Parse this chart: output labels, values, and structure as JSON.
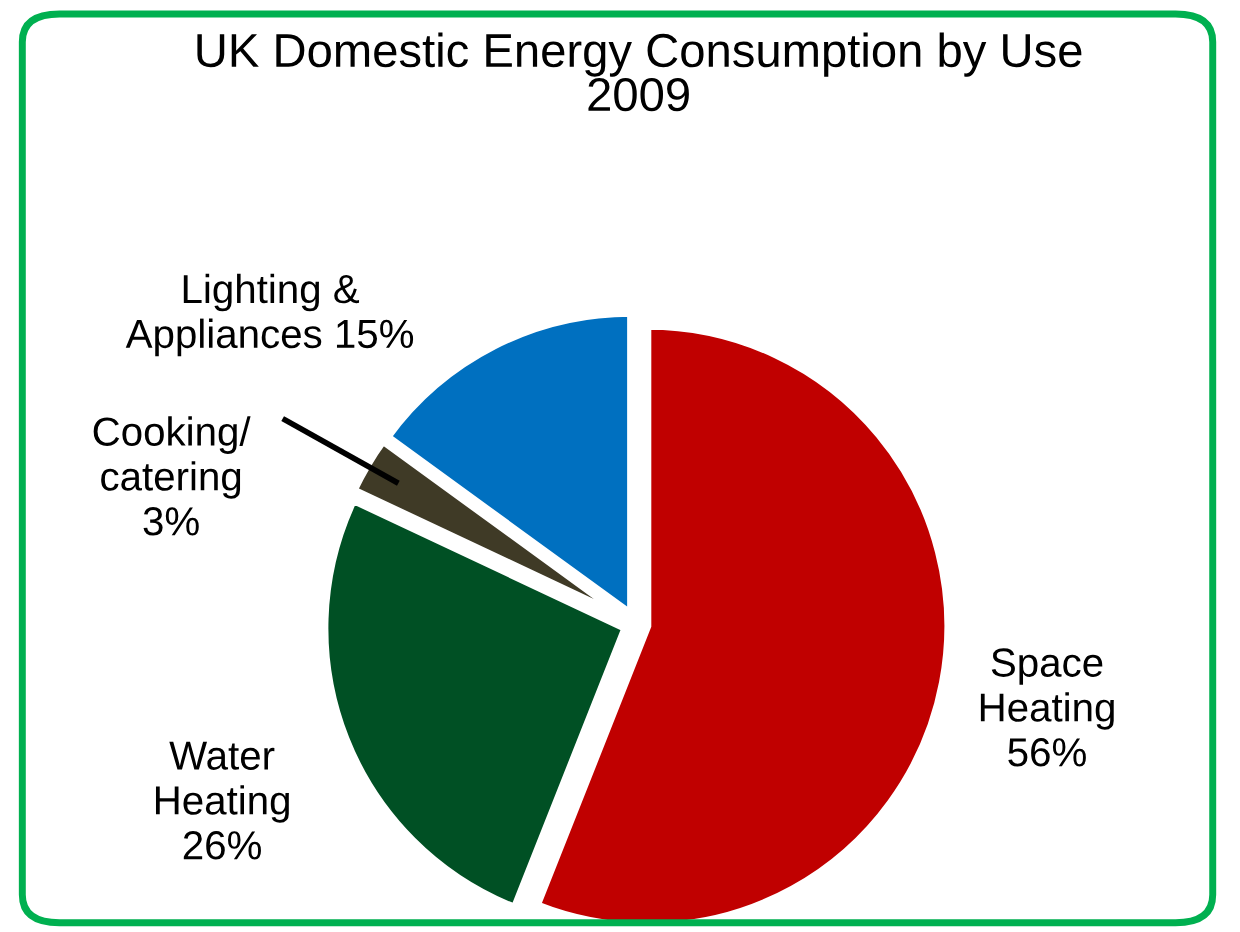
{
  "chart_data": {
    "type": "pie",
    "title": "UK Domestic Energy Consumption by Use\n2009",
    "categories": [
      "Space\nHeating",
      "Water\nHeating",
      "Cooking/\ncatering",
      "Lighting &\nAppliances"
    ],
    "values": [
      56,
      26,
      3,
      15
    ],
    "value_labels": [
      "56%",
      "26%",
      "3%",
      "15%"
    ],
    "colors": [
      "#c00000",
      "#005024",
      "#3f3a26",
      "#0070c0"
    ]
  }
}
